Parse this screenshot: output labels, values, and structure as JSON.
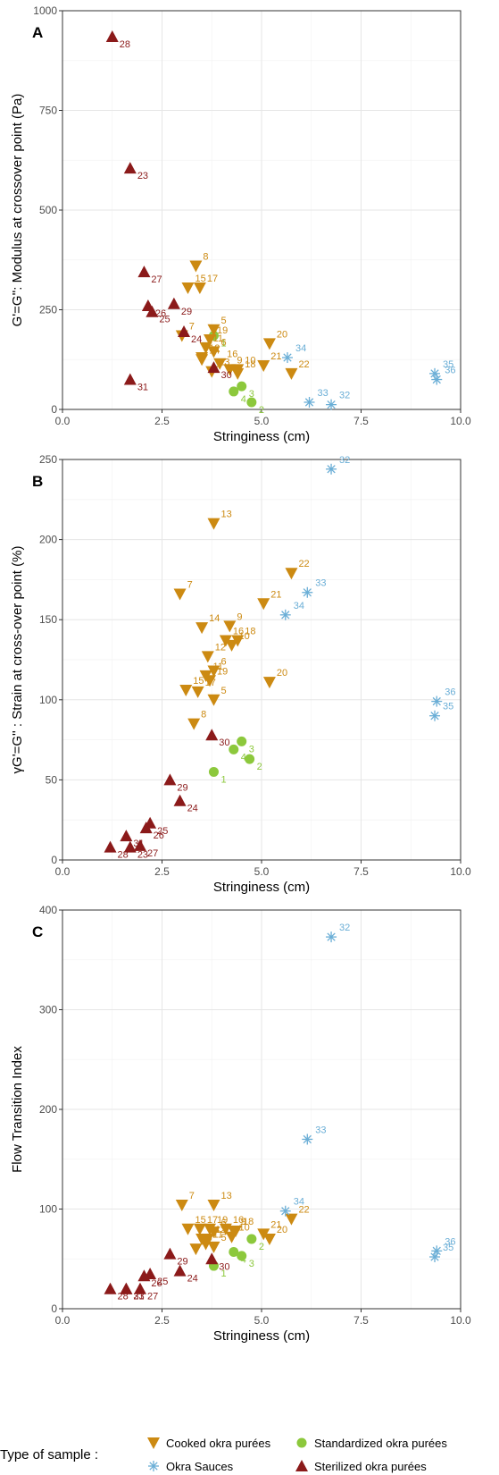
{
  "colors": {
    "cooked": "#CC8A12",
    "standardized": "#8CC83C",
    "sauce": "#6AAED6",
    "sterilized": "#8B1A1A",
    "grid_major": "#E6E6E6",
    "grid_minor": "#F3F3F3",
    "frame": "#333333"
  },
  "legend": {
    "title": "Type of sample :",
    "items": [
      {
        "group": "cooked",
        "label": "Cooked okra purées",
        "icon": "triangle-down"
      },
      {
        "group": "standardized",
        "label": "Standardized okra purées",
        "icon": "circle"
      },
      {
        "group": "sauce",
        "label": "Okra Sauces",
        "icon": "asterisk"
      },
      {
        "group": "sterilized",
        "label": "Sterilized okra purées",
        "icon": "triangle-up"
      }
    ]
  },
  "chart_data": [
    {
      "panel": "A",
      "type": "scatter",
      "xlabel": "Stringiness (cm)",
      "ylabel": "G'=G'': Modulus at crossover point (Pa)",
      "xlim": [
        0,
        10
      ],
      "ylim": [
        0,
        1000
      ],
      "xticks": [
        0,
        2.5,
        5,
        7.5,
        10
      ],
      "xtick_labels": [
        "0.0",
        "2.5",
        "5.0",
        "7.5",
        "10.0"
      ],
      "yticks": [
        0,
        250,
        500,
        750,
        1000
      ],
      "ytick_labels": [
        "0",
        "250",
        "500",
        "750",
        "1000"
      ],
      "grid": true,
      "points": [
        {
          "id": "1",
          "group": "standardized",
          "x": 3.8,
          "y": 185
        },
        {
          "id": "2",
          "group": "standardized",
          "x": 4.75,
          "y": 18
        },
        {
          "id": "3",
          "group": "standardized",
          "x": 4.5,
          "y": 58
        },
        {
          "id": "4",
          "group": "standardized",
          "x": 4.3,
          "y": 45
        },
        {
          "id": "5",
          "group": "cooked",
          "x": 3.8,
          "y": 200
        },
        {
          "id": "6",
          "group": "cooked",
          "x": 3.8,
          "y": 145
        },
        {
          "id": "7",
          "group": "cooked",
          "x": 3.0,
          "y": 185
        },
        {
          "id": "8",
          "group": "cooked",
          "x": 3.35,
          "y": 360
        },
        {
          "id": "9",
          "group": "cooked",
          "x": 4.2,
          "y": 100
        },
        {
          "id": "10",
          "group": "cooked",
          "x": 4.4,
          "y": 100
        },
        {
          "id": "11",
          "group": "cooked",
          "x": 3.6,
          "y": 155
        },
        {
          "id": "12",
          "group": "cooked",
          "x": 3.5,
          "y": 130
        },
        {
          "id": "13",
          "group": "cooked",
          "x": 3.75,
          "y": 95
        },
        {
          "id": "14",
          "group": "cooked",
          "x": 3.5,
          "y": 125
        },
        {
          "id": "15",
          "group": "cooked",
          "x": 3.15,
          "y": 305
        },
        {
          "id": "16",
          "group": "cooked",
          "x": 3.95,
          "y": 115
        },
        {
          "id": "17",
          "group": "cooked",
          "x": 3.45,
          "y": 305
        },
        {
          "id": "18",
          "group": "cooked",
          "x": 4.4,
          "y": 90
        },
        {
          "id": "19",
          "group": "cooked",
          "x": 3.7,
          "y": 175
        },
        {
          "id": "20",
          "group": "cooked",
          "x": 5.2,
          "y": 165
        },
        {
          "id": "21",
          "group": "cooked",
          "x": 5.05,
          "y": 110
        },
        {
          "id": "22",
          "group": "cooked",
          "x": 5.75,
          "y": 90
        },
        {
          "id": "23",
          "group": "sterilized",
          "x": 1.7,
          "y": 605
        },
        {
          "id": "24",
          "group": "sterilized",
          "x": 3.05,
          "y": 195
        },
        {
          "id": "25",
          "group": "sterilized",
          "x": 2.25,
          "y": 245
        },
        {
          "id": "26",
          "group": "sterilized",
          "x": 2.15,
          "y": 260
        },
        {
          "id": "27",
          "group": "sterilized",
          "x": 2.05,
          "y": 345
        },
        {
          "id": "28",
          "group": "sterilized",
          "x": 1.25,
          "y": 935
        },
        {
          "id": "29",
          "group": "sterilized",
          "x": 2.8,
          "y": 265
        },
        {
          "id": "30",
          "group": "sterilized",
          "x": 3.8,
          "y": 105
        },
        {
          "id": "31",
          "group": "sterilized",
          "x": 1.7,
          "y": 75
        },
        {
          "id": "32",
          "group": "sauce",
          "x": 6.75,
          "y": 12
        },
        {
          "id": "33",
          "group": "sauce",
          "x": 6.2,
          "y": 18
        },
        {
          "id": "34",
          "group": "sauce",
          "x": 5.65,
          "y": 130
        },
        {
          "id": "35",
          "group": "sauce",
          "x": 9.35,
          "y": 90
        },
        {
          "id": "36",
          "group": "sauce",
          "x": 9.4,
          "y": 75
        }
      ]
    },
    {
      "panel": "B",
      "type": "scatter",
      "xlabel": "Stringiness (cm)",
      "ylabel": "γG'=G'' : Strain at cross-over point (%)",
      "xlim": [
        0,
        10
      ],
      "ylim": [
        0,
        250
      ],
      "xticks": [
        0,
        2.5,
        5,
        7.5,
        10
      ],
      "xtick_labels": [
        "0.0",
        "2.5",
        "5.0",
        "7.5",
        "10.0"
      ],
      "yticks": [
        0,
        50,
        100,
        150,
        200,
        250
      ],
      "ytick_labels": [
        "0",
        "50",
        "100",
        "150",
        "200",
        "250"
      ],
      "grid": true,
      "points": [
        {
          "id": "1",
          "group": "standardized",
          "x": 3.8,
          "y": 55
        },
        {
          "id": "2",
          "group": "standardized",
          "x": 4.7,
          "y": 63
        },
        {
          "id": "3",
          "group": "standardized",
          "x": 4.5,
          "y": 74
        },
        {
          "id": "4",
          "group": "standardized",
          "x": 4.3,
          "y": 69
        },
        {
          "id": "5",
          "group": "cooked",
          "x": 3.8,
          "y": 100
        },
        {
          "id": "6",
          "group": "cooked",
          "x": 3.8,
          "y": 118
        },
        {
          "id": "7",
          "group": "cooked",
          "x": 2.95,
          "y": 166
        },
        {
          "id": "8",
          "group": "cooked",
          "x": 3.3,
          "y": 85
        },
        {
          "id": "9",
          "group": "cooked",
          "x": 4.2,
          "y": 146
        },
        {
          "id": "10",
          "group": "cooked",
          "x": 4.25,
          "y": 134
        },
        {
          "id": "11",
          "group": "cooked",
          "x": 3.6,
          "y": 115
        },
        {
          "id": "12",
          "group": "cooked",
          "x": 3.65,
          "y": 127
        },
        {
          "id": "13",
          "group": "cooked",
          "x": 3.8,
          "y": 210
        },
        {
          "id": "14",
          "group": "cooked",
          "x": 3.5,
          "y": 145
        },
        {
          "id": "15",
          "group": "cooked",
          "x": 3.1,
          "y": 106
        },
        {
          "id": "16",
          "group": "cooked",
          "x": 4.1,
          "y": 137
        },
        {
          "id": "17",
          "group": "cooked",
          "x": 3.4,
          "y": 105
        },
        {
          "id": "18",
          "group": "cooked",
          "x": 4.4,
          "y": 137
        },
        {
          "id": "19",
          "group": "cooked",
          "x": 3.7,
          "y": 112
        },
        {
          "id": "20",
          "group": "cooked",
          "x": 5.2,
          "y": 111
        },
        {
          "id": "21",
          "group": "cooked",
          "x": 5.05,
          "y": 160
        },
        {
          "id": "22",
          "group": "cooked",
          "x": 5.75,
          "y": 179
        },
        {
          "id": "23",
          "group": "sterilized",
          "x": 1.7,
          "y": 8
        },
        {
          "id": "24",
          "group": "sterilized",
          "x": 2.95,
          "y": 37
        },
        {
          "id": "25",
          "group": "sterilized",
          "x": 2.2,
          "y": 23
        },
        {
          "id": "26",
          "group": "sterilized",
          "x": 2.1,
          "y": 20
        },
        {
          "id": "27",
          "group": "sterilized",
          "x": 1.95,
          "y": 9
        },
        {
          "id": "28",
          "group": "sterilized",
          "x": 1.2,
          "y": 8
        },
        {
          "id": "29",
          "group": "sterilized",
          "x": 2.7,
          "y": 50
        },
        {
          "id": "30",
          "group": "sterilized",
          "x": 3.75,
          "y": 78
        },
        {
          "id": "31",
          "group": "sterilized",
          "x": 1.6,
          "y": 15
        },
        {
          "id": "32",
          "group": "sauce",
          "x": 6.75,
          "y": 244
        },
        {
          "id": "33",
          "group": "sauce",
          "x": 6.15,
          "y": 167
        },
        {
          "id": "34",
          "group": "sauce",
          "x": 5.6,
          "y": 153
        },
        {
          "id": "35",
          "group": "sauce",
          "x": 9.35,
          "y": 90
        },
        {
          "id": "36",
          "group": "sauce",
          "x": 9.4,
          "y": 99
        }
      ]
    },
    {
      "panel": "C",
      "type": "scatter",
      "xlabel": "Stringiness (cm)",
      "ylabel": "Flow Transition Index",
      "xlim": [
        0,
        10
      ],
      "ylim": [
        0,
        400
      ],
      "xticks": [
        0,
        2.5,
        5,
        7.5,
        10
      ],
      "xtick_labels": [
        "0.0",
        "2.5",
        "5.0",
        "7.5",
        "10.0"
      ],
      "yticks": [
        0,
        100,
        200,
        300,
        400
      ],
      "ytick_labels": [
        "0",
        "100",
        "200",
        "300",
        "400"
      ],
      "grid": true,
      "points": [
        {
          "id": "1",
          "group": "standardized",
          "x": 3.8,
          "y": 43
        },
        {
          "id": "2",
          "group": "standardized",
          "x": 4.75,
          "y": 70
        },
        {
          "id": "3",
          "group": "standardized",
          "x": 4.5,
          "y": 53
        },
        {
          "id": "4",
          "group": "standardized",
          "x": 4.3,
          "y": 57
        },
        {
          "id": "5",
          "group": "cooked",
          "x": 3.8,
          "y": 62
        },
        {
          "id": "6",
          "group": "cooked",
          "x": 3.8,
          "y": 77
        },
        {
          "id": "7",
          "group": "cooked",
          "x": 3.0,
          "y": 104
        },
        {
          "id": "8",
          "group": "cooked",
          "x": 3.35,
          "y": 60
        },
        {
          "id": "9",
          "group": "cooked",
          "x": 4.3,
          "y": 78
        },
        {
          "id": "10",
          "group": "cooked",
          "x": 4.25,
          "y": 72
        },
        {
          "id": "11",
          "group": "cooked",
          "x": 3.6,
          "y": 65
        },
        {
          "id": "12",
          "group": "cooked",
          "x": 3.65,
          "y": 70
        },
        {
          "id": "13",
          "group": "cooked",
          "x": 3.8,
          "y": 104
        },
        {
          "id": "14",
          "group": "cooked",
          "x": 3.5,
          "y": 70
        },
        {
          "id": "15",
          "group": "cooked",
          "x": 3.15,
          "y": 80
        },
        {
          "id": "16",
          "group": "cooked",
          "x": 4.1,
          "y": 80
        },
        {
          "id": "17",
          "group": "cooked",
          "x": 3.45,
          "y": 80
        },
        {
          "id": "18",
          "group": "cooked",
          "x": 4.35,
          "y": 78
        },
        {
          "id": "19",
          "group": "cooked",
          "x": 3.7,
          "y": 80
        },
        {
          "id": "20",
          "group": "cooked",
          "x": 5.2,
          "y": 70
        },
        {
          "id": "21",
          "group": "cooked",
          "x": 5.05,
          "y": 75
        },
        {
          "id": "22",
          "group": "cooked",
          "x": 5.75,
          "y": 90
        },
        {
          "id": "23",
          "group": "sterilized",
          "x": 1.6,
          "y": 20
        },
        {
          "id": "24",
          "group": "sterilized",
          "x": 2.95,
          "y": 38
        },
        {
          "id": "25",
          "group": "sterilized",
          "x": 2.2,
          "y": 35
        },
        {
          "id": "26",
          "group": "sterilized",
          "x": 2.05,
          "y": 33
        },
        {
          "id": "27",
          "group": "sterilized",
          "x": 1.95,
          "y": 20
        },
        {
          "id": "28",
          "group": "sterilized",
          "x": 1.2,
          "y": 20
        },
        {
          "id": "29",
          "group": "sterilized",
          "x": 2.7,
          "y": 55
        },
        {
          "id": "30",
          "group": "sterilized",
          "x": 3.75,
          "y": 50
        },
        {
          "id": "31",
          "group": "sterilized",
          "x": 1.6,
          "y": 20
        },
        {
          "id": "32",
          "group": "sauce",
          "x": 6.75,
          "y": 373
        },
        {
          "id": "33",
          "group": "sauce",
          "x": 6.15,
          "y": 170
        },
        {
          "id": "34",
          "group": "sauce",
          "x": 5.6,
          "y": 98
        },
        {
          "id": "35",
          "group": "sauce",
          "x": 9.35,
          "y": 52
        },
        {
          "id": "36",
          "group": "sauce",
          "x": 9.4,
          "y": 58
        }
      ]
    }
  ]
}
